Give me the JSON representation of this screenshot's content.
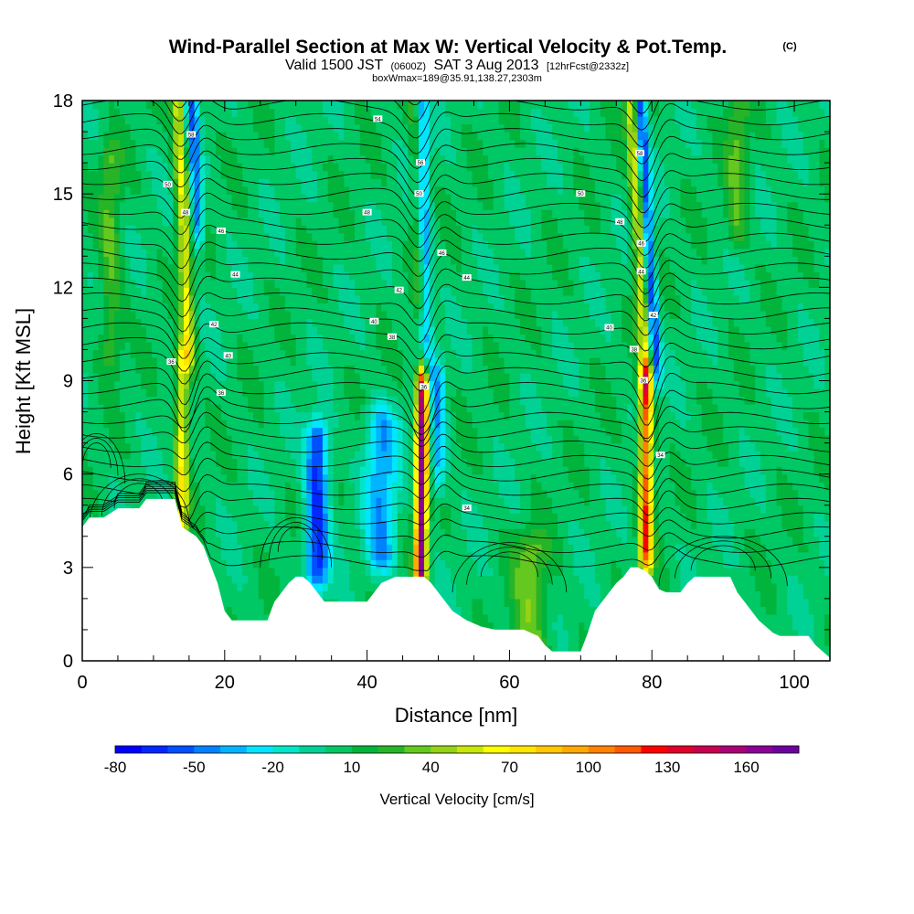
{
  "chart_data": {
    "type": "heatmap",
    "title": "Wind-Parallel Section at Max W: Vertical Velocity & Pot.Temp.",
    "title_mark": "(C)",
    "subtitle": {
      "valid": "Valid 1500 JST",
      "utc": "(0600Z)",
      "date": "SAT 3 Aug 2013",
      "forecast": "[12hrFcst@2332z]"
    },
    "box_info": "boxWmax=189@35.91,138.27,2303m",
    "xlabel": "Distance [nm]",
    "ylabel": "Height [Kft MSL]",
    "xlim": [
      0,
      105
    ],
    "ylim": [
      0,
      18
    ],
    "x_ticks": [
      "0",
      "20",
      "40",
      "60",
      "80",
      "100"
    ],
    "y_ticks": [
      "0",
      "3",
      "6",
      "9",
      "12",
      "15",
      "18"
    ],
    "colorbar": {
      "label": "Vertical Velocity [cm/s]",
      "tick_labels": [
        "-80",
        "-50",
        "-20",
        "10",
        "40",
        "70",
        "100",
        "130",
        "160"
      ],
      "min": -80,
      "max": 180,
      "step": 10,
      "colors": [
        "#0000ff",
        "#0028ff",
        "#0050ff",
        "#0082ff",
        "#00b4ff",
        "#00e6ff",
        "#00e6c8",
        "#00d296",
        "#00c864",
        "#00b43c",
        "#28b428",
        "#64c81e",
        "#96d214",
        "#c8e60a",
        "#ffff00",
        "#ffe600",
        "#ffc800",
        "#ffaa00",
        "#ff8200",
        "#ff5a00",
        "#ff0000",
        "#e10028",
        "#c80050",
        "#aa0078",
        "#8c0096",
        "#6e00a0"
      ]
    },
    "terrain_kft": [
      [
        0,
        4.3
      ],
      [
        1,
        4.6
      ],
      [
        3,
        4.6
      ],
      [
        5,
        4.9
      ],
      [
        8,
        4.9
      ],
      [
        9,
        5.2
      ],
      [
        13,
        5.2
      ],
      [
        14,
        4.3
      ],
      [
        16,
        4.0
      ],
      [
        17,
        3.7
      ],
      [
        18,
        3.1
      ],
      [
        19,
        2.5
      ],
      [
        20,
        1.6
      ],
      [
        21,
        1.3
      ],
      [
        26,
        1.3
      ],
      [
        27,
        1.9
      ],
      [
        28,
        2.2
      ],
      [
        29,
        2.5
      ],
      [
        30,
        2.7
      ],
      [
        31,
        2.7
      ],
      [
        32,
        2.5
      ],
      [
        33,
        2.2
      ],
      [
        34,
        1.9
      ],
      [
        36,
        1.9
      ],
      [
        40,
        1.9
      ],
      [
        41,
        2.2
      ],
      [
        42,
        2.5
      ],
      [
        44,
        2.7
      ],
      [
        48,
        2.7
      ],
      [
        49,
        2.5
      ],
      [
        50,
        2.2
      ],
      [
        51,
        1.9
      ],
      [
        52,
        1.6
      ],
      [
        54,
        1.3
      ],
      [
        56,
        1.1
      ],
      [
        58,
        1.0
      ],
      [
        60,
        1.0
      ],
      [
        62,
        1.0
      ],
      [
        64,
        0.8
      ],
      [
        65,
        0.5
      ],
      [
        66,
        0.3
      ],
      [
        70,
        0.3
      ],
      [
        71,
        0.9
      ],
      [
        72,
        1.6
      ],
      [
        73,
        1.9
      ],
      [
        74,
        2.2
      ],
      [
        75,
        2.5
      ],
      [
        76,
        2.7
      ],
      [
        77,
        3.0
      ],
      [
        78,
        3.0
      ],
      [
        79,
        2.9
      ],
      [
        80,
        2.7
      ],
      [
        81,
        2.3
      ],
      [
        82,
        2.2
      ],
      [
        84,
        2.2
      ],
      [
        85,
        2.5
      ],
      [
        86,
        2.7
      ],
      [
        91,
        2.7
      ],
      [
        92,
        2.2
      ],
      [
        93,
        1.9
      ],
      [
        94,
        1.6
      ],
      [
        95,
        1.3
      ],
      [
        96,
        1.1
      ],
      [
        97,
        0.9
      ],
      [
        98,
        0.8
      ],
      [
        102,
        0.8
      ],
      [
        103,
        0.5
      ],
      [
        104,
        0.3
      ],
      [
        105,
        0.1
      ]
    ],
    "wave_features": [
      {
        "x": 14,
        "zb": 4.5,
        "zt": 9.5,
        "w": 60,
        "sx": 0.9,
        "sz": 2.2,
        "tilt": 0.0
      },
      {
        "x": 15,
        "zb": 10.0,
        "zt": 18.0,
        "w": 55,
        "sx": 0.9,
        "sz": 2.5,
        "tilt": -0.2
      },
      {
        "x": 16.2,
        "zb": 14.0,
        "zt": 18.0,
        "w": -55,
        "sx": 0.8,
        "sz": 2.0,
        "tilt": -0.2
      },
      {
        "x": 33,
        "zb": 3.0,
        "zt": 7.0,
        "w": -70,
        "sx": 1.6,
        "sz": 1.5,
        "tilt": 0.0
      },
      {
        "x": 42,
        "zb": 3.5,
        "zt": 7.5,
        "w": -45,
        "sx": 2.2,
        "sz": 1.5,
        "tilt": 0.0
      },
      {
        "x": 47.5,
        "zb": 3.0,
        "zt": 8.8,
        "w": 160,
        "sx": 0.8,
        "sz": 1.2,
        "tilt": 0.05
      },
      {
        "x": 50,
        "zb": 6.0,
        "zt": 9.0,
        "w": -40,
        "sx": 1.0,
        "sz": 1.0,
        "tilt": 0.0
      },
      {
        "x": 48.5,
        "zb": 9.5,
        "zt": 18.0,
        "w": -40,
        "sx": 0.9,
        "sz": 3.5,
        "tilt": -0.1
      },
      {
        "x": 47.2,
        "zb": 12.0,
        "zt": 18.0,
        "w": 20,
        "sx": 0.8,
        "sz": 3.0,
        "tilt": -0.1
      },
      {
        "x": 79.2,
        "zb": 3.5,
        "zt": 8.8,
        "w": 110,
        "sx": 0.9,
        "sz": 1.2,
        "tilt": 0.0
      },
      {
        "x": 80.5,
        "zb": 9.5,
        "zt": 18.0,
        "w": -65,
        "sx": 0.8,
        "sz": 3.5,
        "tilt": -0.25
      },
      {
        "x": 79.2,
        "zb": 9.5,
        "zt": 18.0,
        "w": 55,
        "sx": 0.9,
        "sz": 3.5,
        "tilt": -0.25
      },
      {
        "x": 4,
        "zb": 10.0,
        "zt": 16.0,
        "w": 25,
        "sx": 1.5,
        "sz": 3.0,
        "tilt": 0.0
      },
      {
        "x": 63,
        "zb": 0.5,
        "zt": 3.5,
        "w": 30,
        "sx": 2.5,
        "sz": 1.5,
        "tilt": 0.0
      },
      {
        "x": 92,
        "zb": 14.0,
        "zt": 18.0,
        "w": 25,
        "sx": 1.5,
        "sz": 2.0,
        "tilt": 0.0
      }
    ],
    "contour_labels": [
      {
        "x": 41.5,
        "z": 17.4,
        "t": "54"
      },
      {
        "x": 15.3,
        "z": 16.9,
        "t": "58"
      },
      {
        "x": 47.5,
        "z": 16.0,
        "t": "56"
      },
      {
        "x": 78.3,
        "z": 16.3,
        "t": "58"
      },
      {
        "x": 12,
        "z": 15.3,
        "t": "50"
      },
      {
        "x": 47.3,
        "z": 15.0,
        "t": "50"
      },
      {
        "x": 70,
        "z": 15.0,
        "t": "50"
      },
      {
        "x": 14.5,
        "z": 14.4,
        "t": "48"
      },
      {
        "x": 40,
        "z": 14.4,
        "t": "48"
      },
      {
        "x": 75.5,
        "z": 14.1,
        "t": "48"
      },
      {
        "x": 19.5,
        "z": 13.8,
        "t": "46"
      },
      {
        "x": 78.5,
        "z": 13.4,
        "t": "46"
      },
      {
        "x": 50.5,
        "z": 13.1,
        "t": "46"
      },
      {
        "x": 21.5,
        "z": 12.4,
        "t": "44"
      },
      {
        "x": 54,
        "z": 12.3,
        "t": "44"
      },
      {
        "x": 78.5,
        "z": 12.5,
        "t": "44"
      },
      {
        "x": 44.5,
        "z": 11.9,
        "t": "42"
      },
      {
        "x": 80.2,
        "z": 11.1,
        "t": "42"
      },
      {
        "x": 18.5,
        "z": 10.8,
        "t": "42"
      },
      {
        "x": 41,
        "z": 10.9,
        "t": "40"
      },
      {
        "x": 74,
        "z": 10.7,
        "t": "40"
      },
      {
        "x": 43.5,
        "z": 10.4,
        "t": "38"
      },
      {
        "x": 20.5,
        "z": 9.8,
        "t": "40"
      },
      {
        "x": 77.5,
        "z": 10.0,
        "t": "38"
      },
      {
        "x": 12.5,
        "z": 9.6,
        "t": "36"
      },
      {
        "x": 78.8,
        "z": 9.0,
        "t": "36"
      },
      {
        "x": 48,
        "z": 8.8,
        "t": "36"
      },
      {
        "x": 19.5,
        "z": 8.6,
        "t": "36"
      },
      {
        "x": 81.2,
        "z": 6.6,
        "t": "34"
      },
      {
        "x": 54,
        "z": 4.9,
        "t": "34"
      }
    ]
  }
}
